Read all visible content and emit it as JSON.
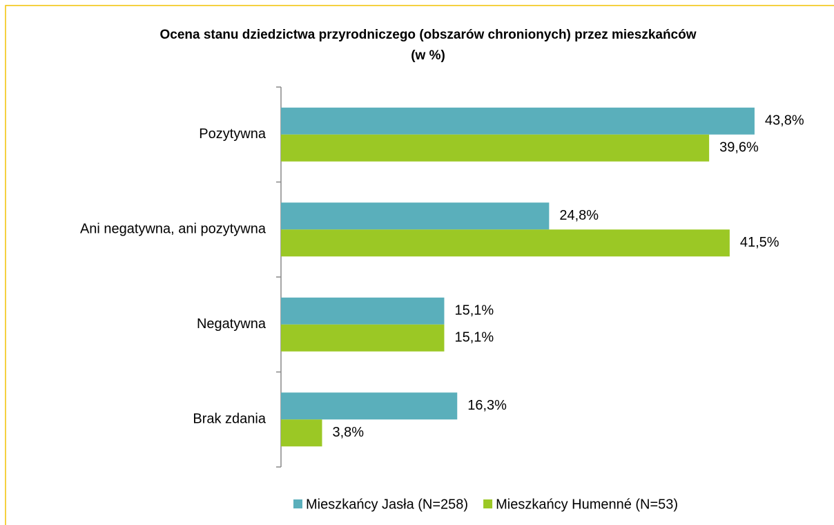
{
  "chart_data": {
    "type": "hbar",
    "title": "Ocena stanu dziedzictwa przyrodniczego (obszarów chronionych) przez mieszkańców (w %)",
    "categories": [
      "Pozytywna",
      "Ani negatywna, ani pozytywna",
      "Negatywna",
      "Brak zdania"
    ],
    "series": [
      {
        "name": "Mieszkańcy Jasła (N=258)",
        "color": "#5aafbb",
        "values": [
          43.8,
          24.8,
          15.1,
          16.3
        ],
        "value_labels": [
          "43,8%",
          "24,8%",
          "15,1%",
          "16,3%"
        ]
      },
      {
        "name": "Mieszkańcy Humenné (N=53)",
        "color": "#9bc825",
        "values": [
          39.6,
          41.5,
          15.1,
          3.8
        ],
        "value_labels": [
          "39,6%",
          "41,5%",
          "15,1%",
          "3,8%"
        ]
      }
    ],
    "xlim": [
      0,
      50
    ],
    "legend": "bottom"
  }
}
